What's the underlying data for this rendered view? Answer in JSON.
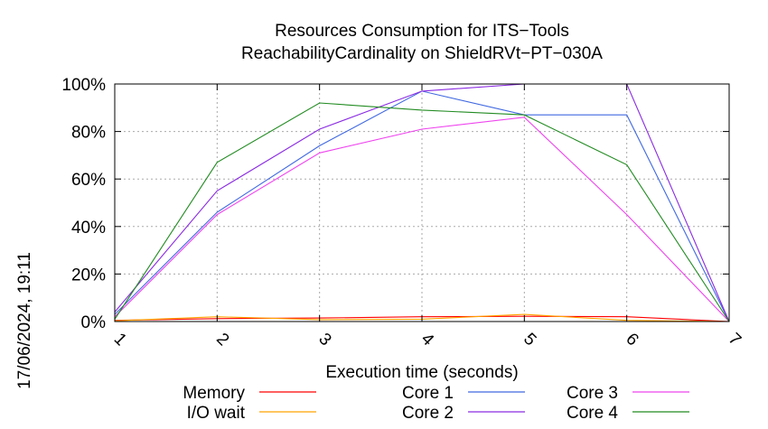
{
  "chart_data": {
    "type": "line",
    "title": "Resources Consumption for ITS−Tools",
    "subtitle": "ReachabilityCardinality on ShieldRVt−PT−030A",
    "xlabel": "Execution time (seconds)",
    "ylabel": "",
    "side_label": "17/06/2024, 19:11",
    "x": [
      1,
      2,
      3,
      4,
      5,
      6,
      7
    ],
    "xlim": [
      1,
      7
    ],
    "ylim": [
      0,
      100
    ],
    "x_ticks": [
      "1",
      "2",
      "3",
      "4",
      "5",
      "6",
      "7"
    ],
    "y_ticks": [
      {
        "value": 0,
        "label": "0%"
      },
      {
        "value": 20,
        "label": "20%"
      },
      {
        "value": 40,
        "label": "40%"
      },
      {
        "value": 60,
        "label": "60%"
      },
      {
        "value": 80,
        "label": "80%"
      },
      {
        "value": 100,
        "label": "100%"
      }
    ],
    "grid": true,
    "legend_position": "bottom",
    "series": [
      {
        "name": "Memory",
        "color": "#ff0000",
        "values": [
          0.5,
          1.2,
          1.5,
          2.0,
          2.2,
          2.0,
          0
        ]
      },
      {
        "name": "I/O wait",
        "color": "#ffa500",
        "values": [
          0.3,
          2.0,
          0.8,
          1.0,
          3.0,
          0.5,
          0
        ]
      },
      {
        "name": "Core 1",
        "color": "#4169e1",
        "values": [
          3,
          46,
          74,
          97,
          87,
          87,
          0
        ]
      },
      {
        "name": "Core 2",
        "color": "#8a2be2",
        "values": [
          4,
          55,
          81,
          97,
          100,
          100,
          0
        ]
      },
      {
        "name": "Core 3",
        "color": "#ee44ee",
        "values": [
          2,
          45,
          71,
          81,
          86,
          45,
          0
        ]
      },
      {
        "name": "Core 4",
        "color": "#228b22",
        "values": [
          1,
          67,
          92,
          89,
          87,
          66,
          0
        ]
      }
    ]
  }
}
